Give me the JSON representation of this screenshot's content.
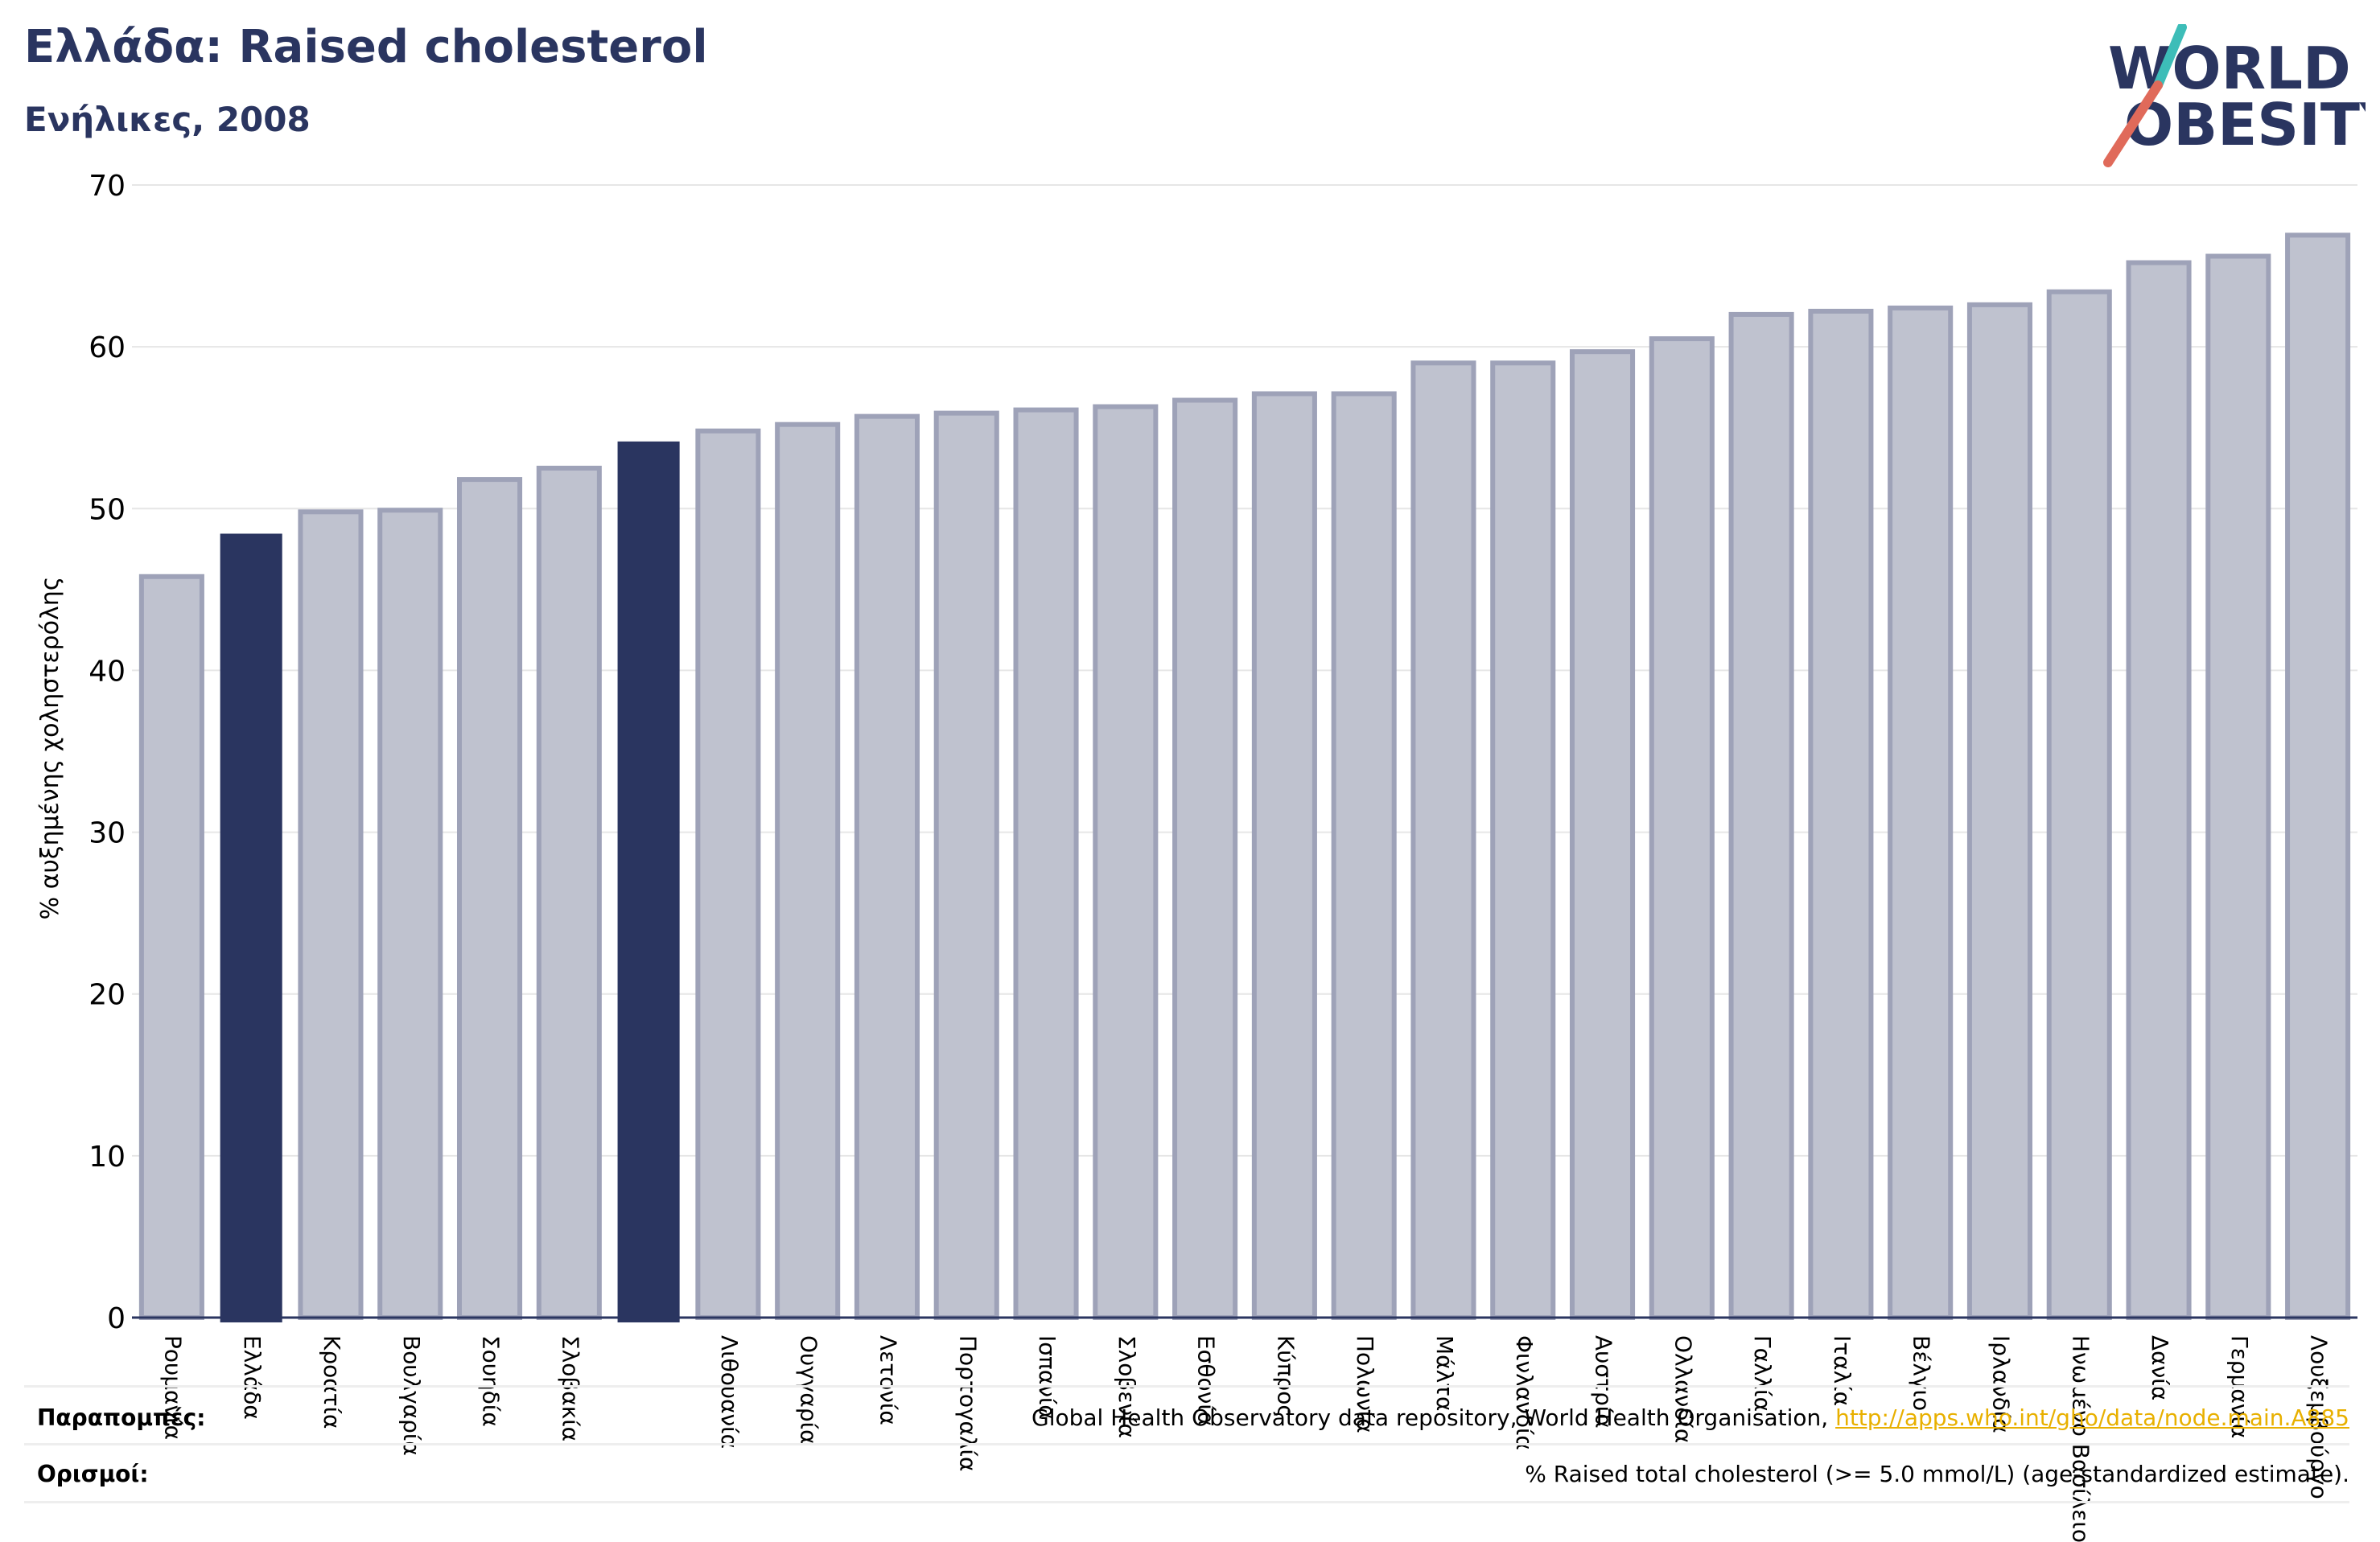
{
  "header": {
    "title": "Ελλάδα: Raised cholesterol",
    "subtitle": "Ενήλικες, 2008"
  },
  "logo": {
    "line1": "WORLD",
    "line2": "OBESITY",
    "accent_teal": "#3dbdb8",
    "accent_red": "#e06a5a",
    "text_color": "#2a3560"
  },
  "colors": {
    "highlight": "#2a3560",
    "bar_fill": "#bfc2cf",
    "bar_stroke": "#9ea2b8",
    "title": "#2a3560",
    "link": "#e8b000"
  },
  "chart_data": {
    "type": "bar",
    "title": "Ελλάδα: Raised cholesterol",
    "subtitle": "Ενήλικες, 2008",
    "xlabel": "",
    "ylabel": "% αυξημένης χοληστερόλης",
    "ylim": [
      0,
      70
    ],
    "yticks": [
      0,
      10,
      20,
      30,
      40,
      50,
      60,
      70
    ],
    "grid": true,
    "categories": [
      "Ρουμανία",
      "Ελλάδα",
      "Κροατία",
      "Βουλγαρία",
      "Σουηδία",
      "Σλοβακία",
      "",
      "Λιθουανία",
      "Ουγγαρία",
      "Λετονία",
      "Πορτογαλία",
      "Ισπανία",
      "Σλοβενία",
      "Εσθονία",
      "Κύπρος",
      "Πολωνία",
      "Μάλτα",
      "Φινλανδία",
      "Αυστρία",
      "Ολλανδία",
      "Γαλλία",
      "Ιταλία",
      "Βέλγιο",
      "Ιρλανδία",
      "Ηνωμένο Βασίλειο",
      "Δανία",
      "Γερμανία",
      "Λουξεμβούργο"
    ],
    "values": [
      45.8,
      48.4,
      49.8,
      49.9,
      51.8,
      52.5,
      54.1,
      54.8,
      55.2,
      55.7,
      55.9,
      56.1,
      56.3,
      56.7,
      57.1,
      57.1,
      59.0,
      59.0,
      59.7,
      60.5,
      62.0,
      62.2,
      62.4,
      62.6,
      63.4,
      65.2,
      65.6,
      66.9
    ],
    "highlighted": [
      "Ελλάδα",
      ""
    ]
  },
  "footer": {
    "references_label": "Παραπομπές:",
    "references_text": "Global Health Observatory data repository, World Health Organisation,",
    "references_link": "http://apps.who.int/gho/data/node.main.A885",
    "definitions_label": "Ορισμοί:",
    "definitions_text": "% Raised total cholesterol (>= 5.0 mmol/L) (age-standardized estimate)."
  }
}
